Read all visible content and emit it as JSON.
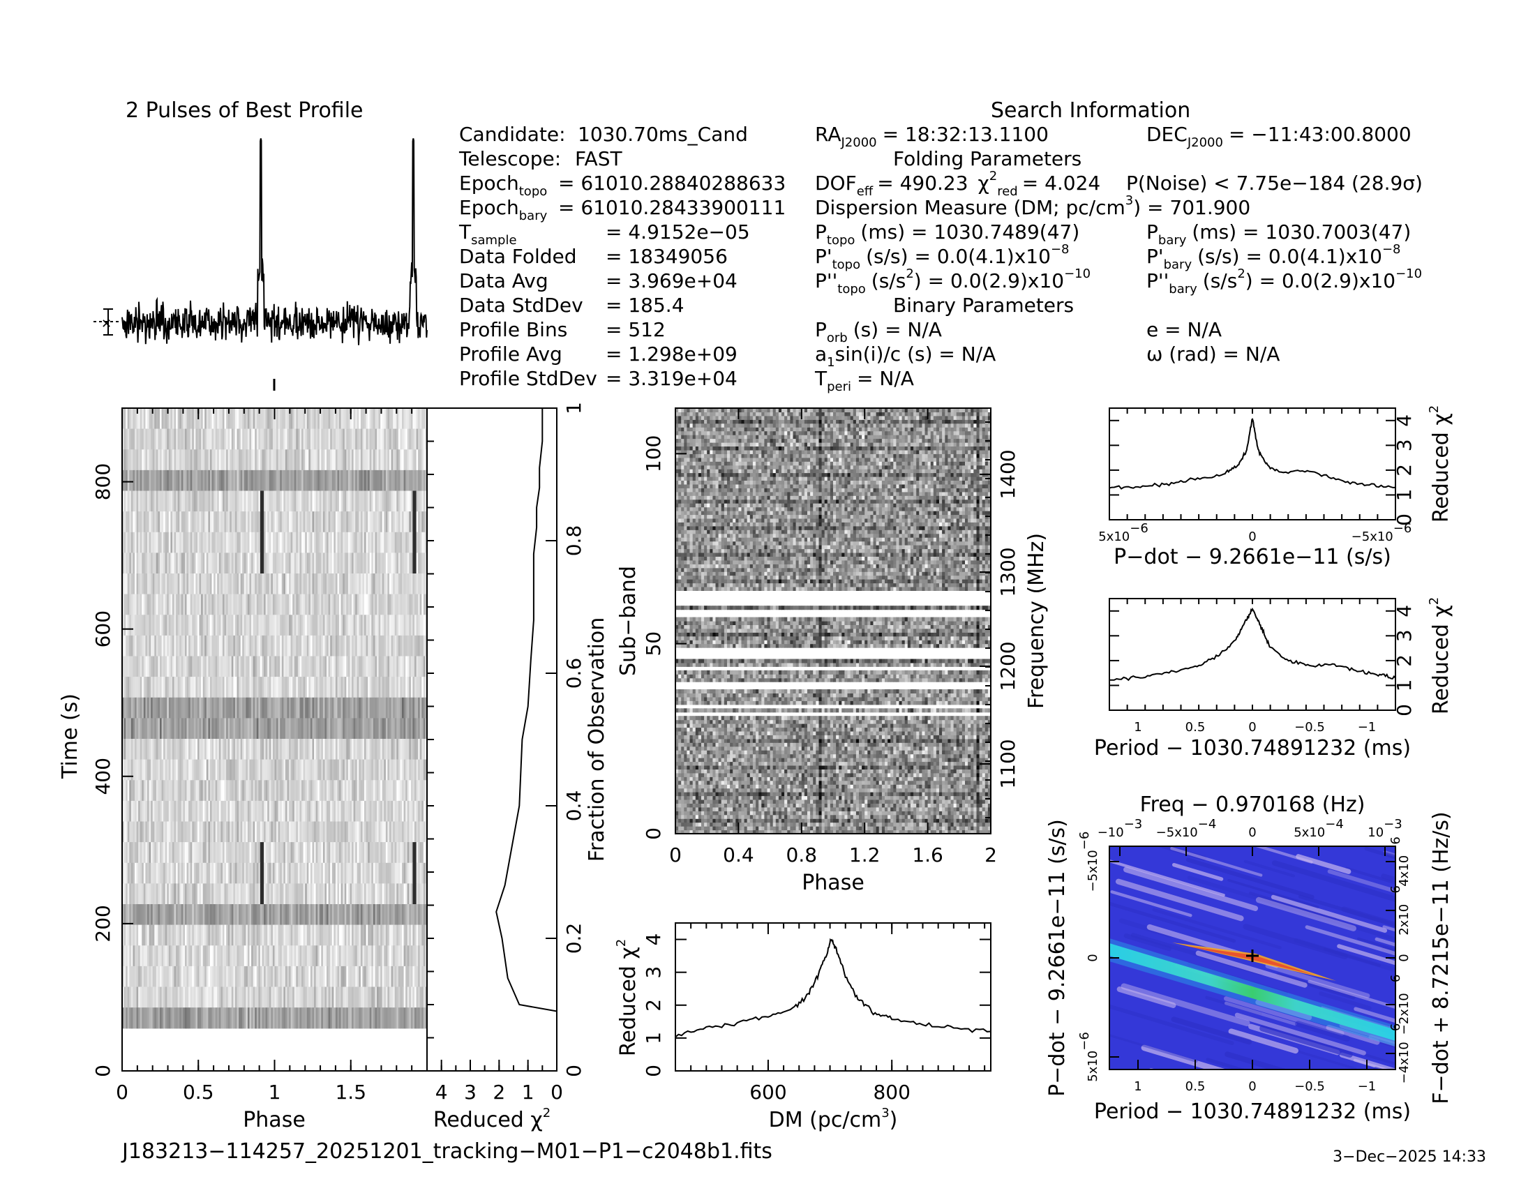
{
  "profile_title": "2 Pulses of Best Profile",
  "search_title": "Search Information",
  "info": {
    "candidate_label": "Candidate:",
    "candidate": "1030.70ms_Cand",
    "telescope_label": "Telescope:",
    "telescope": "FAST",
    "epoch_topo_label": "Epoch",
    "epoch_topo_sub": "topo",
    "epoch_topo": "= 61010.28840288633",
    "epoch_bary_label": "Epoch",
    "epoch_bary_sub": "bary",
    "epoch_bary": "= 61010.28433900111",
    "tsample_label": "T",
    "tsample_sub": "sample",
    "tsample": "=  4.9152e−05",
    "folded_label": "Data Folded",
    "folded": "=  18349056",
    "avg_label": "Data Avg",
    "avg": "=  3.969e+04",
    "std_label": "Data StdDev",
    "std": "=  185.4",
    "bins_label": "Profile Bins",
    "bins": "=  512",
    "pavg_label": "Profile Avg",
    "pavg": "=  1.298e+09",
    "pstd_label": "Profile StdDev",
    "pstd": "=  3.319e+04"
  },
  "coords": {
    "ra_label": "RA",
    "ra_sub": "J2000",
    "ra": "= 18:32:13.1100",
    "dec_label": "DEC",
    "dec_sub": "J2000",
    "dec": "= −11:43:00.8000"
  },
  "folding": {
    "title": "Folding Parameters",
    "dof_label": "DOF",
    "dof_sub": "eff",
    "dof": "= 490.23",
    "chi_label": "χ",
    "chi_sup": "2",
    "chi_sub": "red",
    "chi": "= 4.024",
    "noise": "P(Noise) < 7.75e−184   (28.9σ)",
    "dm_line": "Dispersion Measure (DM; pc/cm",
    "dm_sup": "3",
    "dm_val": ") = 701.900",
    "ptopo_label": "P",
    "ptopo_sub": "topo",
    "ptopo": "(ms) =  1030.7489(47)",
    "pbary_label": "P",
    "pbary_sub": "bary",
    "pbary": "(ms) =  1030.7003(47)",
    "pdtopo_label": "P'",
    "pdtopo_sub": "topo",
    "pdtopo": "(s/s) = 0.0(4.1)x10",
    "pdtopo_exp": "−8",
    "pdbary_label": "P'",
    "pdbary_sub": "bary",
    "pdbary": "(s/s) = 0.0(4.1)x10",
    "pdbary_exp": "−8",
    "pddtopo_label": "P''",
    "pddtopo_sub": "topo",
    "pddtopo_a": "(s/s",
    "pddtopo_b": ") = 0.0(2.9)x10",
    "pddtopo_exp": "−10",
    "pddbary_label": "P''",
    "pddbary_sub": "bary",
    "pddbary_a": "(s/s",
    "pddbary_b": ") = 0.0(2.9)x10",
    "pddbary_exp": "−10",
    "sq": "2"
  },
  "binary": {
    "title": "Binary Parameters",
    "porb_label": "P",
    "porb_sub": "orb",
    "porb": "(s) = N/A",
    "e": "e = N/A",
    "asini_a": "a",
    "asini_sub": "1",
    "asini_b": "sin(i)/c (s) = N/A",
    "omega": "ω (rad) = N/A",
    "tperi_label": "T",
    "tperi_sub": "peri",
    "tperi": "= N/A"
  },
  "filename": "J183213−114257_20251201_tracking−M01−P1−c2048b1.fits",
  "date": "3−Dec−2025 14:33",
  "chart_data": [
    {
      "id": "time-phase",
      "type": "heatmap",
      "xlabel": "Phase",
      "ylabel": "Time (s)",
      "y2label": "Fraction of Observation",
      "xlim": [
        0,
        2
      ],
      "ylim": [
        0,
        900
      ],
      "y2lim": [
        0,
        1
      ],
      "xticks": [
        "0",
        "0.5",
        "1",
        "1.5"
      ],
      "yticks": [
        "0",
        "200",
        "400",
        "600",
        "800"
      ],
      "y2ticks": [
        "0",
        "0.2",
        "0.4",
        "0.6",
        "0.8",
        "1"
      ],
      "pulse_phases": [
        0.91,
        1.91
      ],
      "data_start_s": 58
    },
    {
      "id": "redchi-time",
      "type": "line",
      "xlabel": "Reduced χ",
      "xlabel_sup": "2",
      "xlim": [
        4.5,
        0
      ],
      "xticks": [
        "4",
        "3",
        "2",
        "1",
        "0"
      ],
      "x": [
        0,
        1.3,
        1.7,
        1.9,
        2.1,
        1.8,
        1.3,
        1.2,
        1.0,
        0.9,
        0.8,
        0.8,
        0.8,
        0.7,
        0.7,
        0.6,
        0.6,
        0.5,
        0.5,
        0.5
      ],
      "y": [
        0.09,
        0.1,
        0.14,
        0.2,
        0.24,
        0.28,
        0.4,
        0.5,
        0.55,
        0.62,
        0.68,
        0.73,
        0.78,
        0.82,
        0.85,
        0.88,
        0.91,
        0.95,
        0.98,
        1.0
      ]
    },
    {
      "id": "subband-phase",
      "type": "heatmap",
      "xlabel": "Phase",
      "ylabel": "Sub−band",
      "y2label": "Frequency (MHz)",
      "xlim": [
        0,
        2
      ],
      "ylim": [
        0,
        112
      ],
      "xticks": [
        "0",
        "0.4",
        "0.8",
        "1.2",
        "1.6",
        "2"
      ],
      "yticks": [
        "0",
        "50",
        "100"
      ],
      "y2ticks": [
        "1100",
        "1200",
        "1300",
        "1400"
      ],
      "masked_bands": [
        [
          30.5,
          32
        ],
        [
          33,
          34
        ],
        [
          37.5,
          40
        ],
        [
          43,
          44
        ],
        [
          46,
          49
        ],
        [
          57,
          59
        ],
        [
          60,
          64
        ]
      ]
    },
    {
      "id": "dm-curve",
      "type": "line",
      "xlabel": "DM (pc/cm",
      "xlabel_sup": "3",
      "xlabel_end": ")",
      "ylabel": "Reduced χ",
      "ylabel_sup": "2",
      "xlim": [
        450,
        960
      ],
      "ylim": [
        0,
        4.5
      ],
      "xticks": [
        "600",
        "800"
      ],
      "yticks": [
        "0",
        "1",
        "2",
        "3",
        "4"
      ],
      "x": [
        450,
        500,
        550,
        600,
        640,
        665,
        680,
        695,
        702,
        710,
        725,
        745,
        770,
        800,
        850,
        900,
        960
      ],
      "y": [
        1.1,
        1.3,
        1.45,
        1.65,
        1.9,
        2.3,
        2.9,
        3.6,
        4.0,
        3.7,
        2.9,
        2.2,
        1.8,
        1.6,
        1.4,
        1.3,
        1.2
      ]
    },
    {
      "id": "pdot-curve",
      "type": "line",
      "xlabel": "P−dot − 9.2661e−11 (s/s)",
      "ylabel": "Reduced χ",
      "ylabel_sup": "2",
      "xlim": [
        5e-06,
        -5e-06
      ],
      "ylim": [
        0,
        4.5
      ],
      "yticks": [
        "0",
        "1",
        "2",
        "3",
        "4"
      ],
      "xtick_left": "5x10",
      "xtick_left_exp": "−6",
      "xtick_mid": "0",
      "xtick_right": "−5x10",
      "xtick_right_exp": "−6",
      "x": [
        5e-06,
        4e-06,
        3e-06,
        2e-06,
        1e-06,
        5e-07,
        2e-07,
        0,
        -2e-07,
        -5e-07,
        -1e-06,
        -2e-06,
        -3e-06,
        -4e-06,
        -5e-06
      ],
      "y": [
        1.3,
        1.35,
        1.45,
        1.6,
        1.85,
        2.2,
        2.8,
        4.1,
        2.8,
        2.2,
        1.9,
        2.0,
        1.6,
        1.4,
        1.3
      ]
    },
    {
      "id": "period-curve",
      "type": "line",
      "xlabel": "Period − 1030.74891232 (ms)",
      "ylabel": "Reduced χ",
      "ylabel_sup": "2",
      "xlim": [
        1.25,
        -1.25
      ],
      "ylim": [
        0,
        4.5
      ],
      "xticks": [
        "1",
        "0.5",
        "0",
        "−0.5",
        "−1"
      ],
      "yticks": [
        "0",
        "1",
        "2",
        "3",
        "4"
      ],
      "x": [
        1.25,
        1.0,
        0.75,
        0.5,
        0.3,
        0.15,
        0.07,
        0,
        -0.07,
        -0.15,
        -0.3,
        -0.5,
        -0.7,
        -0.9,
        -1.1,
        -1.25
      ],
      "y": [
        1.2,
        1.35,
        1.5,
        1.75,
        2.2,
        2.8,
        3.5,
        4.1,
        3.4,
        2.6,
        2.0,
        1.8,
        1.85,
        1.6,
        1.45,
        1.3
      ]
    },
    {
      "id": "p-pdot-plane",
      "type": "heatmap",
      "title": "Freq − 0.970168 (Hz)",
      "xlabel": "Period − 1030.74891232 (ms)",
      "ylabel": "P−dot − 9.2661e−11 (s/s)",
      "y2label": "F−dot + 8.7215e−11 (Hz/s)",
      "xlim": [
        1.25,
        -1.25
      ],
      "ylim": [
        5e-06,
        -5e-06
      ],
      "xticks": [
        "1",
        "0.5",
        "0",
        "−0.5",
        "−1"
      ],
      "top_ticks": [
        "−10",
        "−5x10",
        "0",
        "5x10",
        "10"
      ],
      "top_exps": [
        "−3",
        "−4",
        "",
        "−4",
        "−3"
      ],
      "left_ticks": [
        "−5x10",
        "0",
        "5x10"
      ],
      "left_exps": [
        "−6",
        "",
        "−6"
      ],
      "right_ticks": [
        "4x10",
        "2x10",
        "0",
        "−2x10",
        "−4x10"
      ],
      "right_exps": [
        "−6",
        "−6",
        "",
        "−6",
        "−6"
      ],
      "best_point": [
        0,
        0
      ]
    }
  ]
}
